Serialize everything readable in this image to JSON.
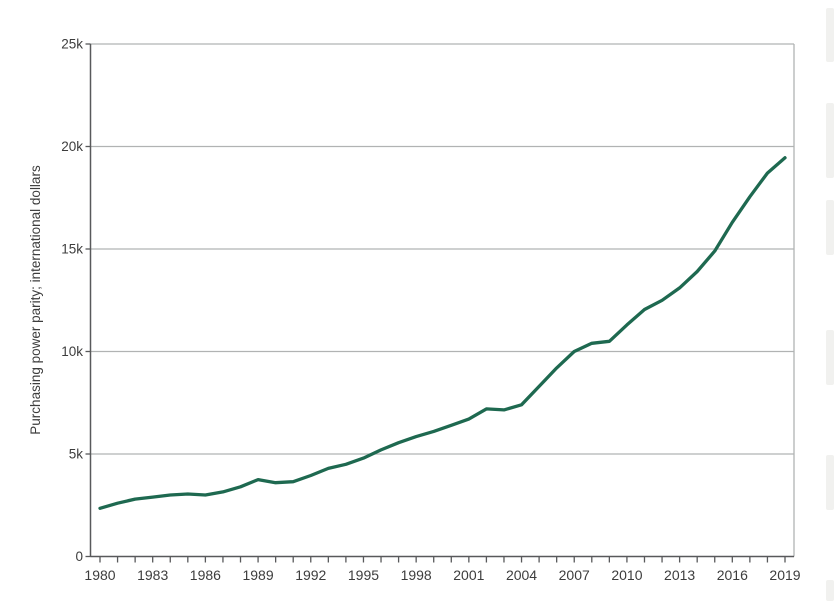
{
  "chart_data": {
    "type": "line",
    "title": "",
    "xlabel": "",
    "ylabel": "Purchasing power parity; international dollars",
    "x": [
      1980,
      1981,
      1982,
      1983,
      1984,
      1985,
      1986,
      1987,
      1988,
      1989,
      1990,
      1991,
      1992,
      1993,
      1994,
      1995,
      1996,
      1997,
      1998,
      1999,
      2000,
      2001,
      2002,
      2003,
      2004,
      2005,
      2006,
      2007,
      2008,
      2009,
      2010,
      2011,
      2012,
      2013,
      2014,
      2015,
      2016,
      2017,
      2018,
      2019
    ],
    "series": [
      {
        "name": "Purchasing power parity; international dollars",
        "color": "#1e6950",
        "values": [
          2350,
          2600,
          2800,
          2900,
          3000,
          3050,
          3000,
          3150,
          3400,
          3750,
          3600,
          3650,
          3950,
          4300,
          4500,
          4800,
          5200,
          5550,
          5850,
          6100,
          6400,
          6700,
          7200,
          7150,
          7400,
          8300,
          9200,
          10000,
          10400,
          10500,
          11300,
          12050,
          12500,
          13100,
          13900,
          14900,
          16300,
          17550,
          18700,
          19450
        ]
      }
    ],
    "ylim": [
      0,
      25000
    ],
    "yticks": [
      0,
      5000,
      10000,
      15000,
      20000,
      25000
    ],
    "ytick_labels": [
      "0",
      "5k",
      "10k",
      "15k",
      "20k",
      "25k"
    ],
    "xtick_labeled_years": [
      1980,
      1983,
      1986,
      1989,
      1992,
      1995,
      1998,
      2001,
      2004,
      2007,
      2010,
      2013,
      2016,
      2019
    ],
    "legend_position": "none",
    "grid": "horizontal"
  },
  "colors": {
    "line": "#1e6950",
    "axis": "#58595b",
    "grid": "#b1b3b3",
    "tick_label": "#3d3d3d",
    "scroll_fragment": "#f1f1ef"
  }
}
